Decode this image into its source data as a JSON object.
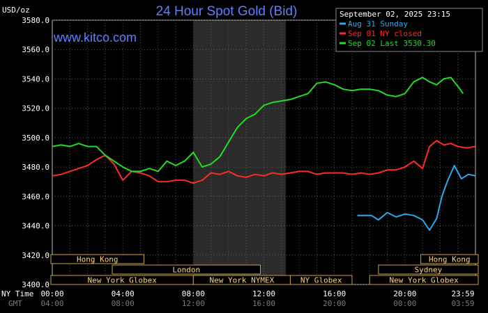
{
  "chart_data": {
    "type": "line",
    "title": "24 Hour Spot Gold (Bid)",
    "unit_label": "USD/oz",
    "brand": "www.kitco.com",
    "timestamp": "September 02, 2025 23:15",
    "ylim": [
      3400,
      3580
    ],
    "yticks": [
      "3580.0",
      "3560.0",
      "3540.0",
      "3520.0",
      "3500.0",
      "3480.0",
      "3460.0",
      "3440.0",
      "3420.0",
      "3400.0"
    ],
    "ytick_values": [
      3580,
      3560,
      3540,
      3520,
      3500,
      3480,
      3460,
      3440,
      3420,
      3400
    ],
    "x_row_labels": {
      "ny": "NY Time",
      "gmt": "GMT"
    },
    "xticks_ny": [
      "00:00",
      "04:00",
      "08:00",
      "12:00",
      "16:00",
      "20:00",
      "23:59"
    ],
    "xticks_gmt": [
      "04:00",
      "08:00",
      "12:00",
      "16:00",
      "20:00",
      "00:00",
      "03:59"
    ],
    "xtick_hours": [
      0,
      4,
      8,
      12,
      16,
      20,
      24
    ],
    "highlight_hours": [
      8,
      13.25
    ],
    "sessions": [
      {
        "label": "Hong Kong",
        "start": -0.2,
        "end": 5.2,
        "row": 0
      },
      {
        "label": "Hong Kong",
        "start": 20.9,
        "end": 24.2,
        "row": 0
      },
      {
        "label": "London",
        "start": 3.4,
        "end": 11.8,
        "row": 1
      },
      {
        "label": "Sydney",
        "start": 18.5,
        "end": 24.2,
        "row": 1
      },
      {
        "label": "New York Globex",
        "start": -0.2,
        "end": 8.0,
        "row": 2
      },
      {
        "label": "New York NYMEX",
        "start": 8.0,
        "end": 13.5,
        "row": 2
      },
      {
        "label": "NY Globex",
        "start": 13.5,
        "end": 17.0,
        "row": 2
      },
      {
        "label": "New York Globex",
        "start": 18.0,
        "end": 24.2,
        "row": 2
      }
    ],
    "series": [
      {
        "name": "Aug 31 Sunday",
        "color": "#29a9ef",
        "x": [
          17.3,
          18.1,
          18.5,
          19.0,
          19.5,
          20.0,
          20.5,
          21.0,
          21.4,
          21.8,
          22.1,
          22.4,
          22.8,
          23.2,
          23.6,
          24.0
        ],
        "y": [
          3447,
          3447,
          3444,
          3449,
          3446,
          3448,
          3447,
          3444,
          3437,
          3445,
          3460,
          3470,
          3481,
          3472,
          3475,
          3474
        ]
      },
      {
        "name": "Sep 01 NY closed",
        "color": "#ff2a2a",
        "x": [
          0,
          0.5,
          1.0,
          1.5,
          2.0,
          2.5,
          3.0,
          3.5,
          4.0,
          4.5,
          5.0,
          5.5,
          6.0,
          6.5,
          7.0,
          7.5,
          8.0,
          8.5,
          9.0,
          9.5,
          10.0,
          10.5,
          11.0,
          11.5,
          12.0,
          12.5,
          13.0,
          13.5,
          14.0,
          14.5,
          15.0,
          15.5,
          16.0,
          16.5,
          17.0,
          17.5,
          18.0,
          18.5,
          19.0,
          19.5,
          20.0,
          20.5,
          21.0,
          21.4,
          21.8,
          22.2,
          22.6,
          23.0,
          23.5,
          24.0
        ],
        "y": [
          3474,
          3475,
          3477,
          3479,
          3481,
          3485,
          3488,
          3482,
          3471,
          3477,
          3476,
          3474,
          3470,
          3470,
          3471,
          3471,
          3469,
          3471,
          3476,
          3475,
          3477,
          3474,
          3473,
          3475,
          3474,
          3476,
          3475,
          3476,
          3477,
          3477,
          3475,
          3476,
          3476,
          3476,
          3475,
          3476,
          3475,
          3476,
          3478,
          3478,
          3480,
          3484,
          3479,
          3494,
          3498,
          3495,
          3496,
          3494,
          3493,
          3494
        ]
      },
      {
        "name": "Sep 02 Last 3530.30",
        "color": "#22dd22",
        "x": [
          0,
          0.5,
          1.0,
          1.5,
          2.0,
          2.5,
          3.0,
          3.5,
          4.0,
          4.5,
          5.0,
          5.5,
          6.0,
          6.5,
          7.0,
          7.5,
          8.0,
          8.5,
          9.0,
          9.5,
          10.0,
          10.5,
          11.0,
          11.5,
          12.0,
          12.5,
          13.0,
          13.5,
          14.0,
          14.5,
          15.0,
          15.5,
          16.0,
          16.5,
          17.0,
          17.5,
          18.0,
          18.5,
          19.0,
          19.5,
          20.0,
          20.5,
          21.0,
          21.4,
          21.8,
          22.2,
          22.6,
          23.0,
          23.3
        ],
        "y": [
          3494,
          3495,
          3494,
          3496,
          3494,
          3494,
          3488,
          3484,
          3480,
          3477,
          3477,
          3479,
          3477,
          3484,
          3481,
          3484,
          3490,
          3480,
          3482,
          3487,
          3497,
          3507,
          3513,
          3516,
          3522,
          3524,
          3525,
          3526,
          3528,
          3530,
          3537,
          3538,
          3536,
          3533,
          3532,
          3533,
          3533,
          3532,
          3529,
          3528,
          3530,
          3538,
          3541,
          3538,
          3536,
          3540,
          3541,
          3535,
          3530
        ]
      }
    ],
    "legend_placement": "top-right",
    "grid": true
  }
}
